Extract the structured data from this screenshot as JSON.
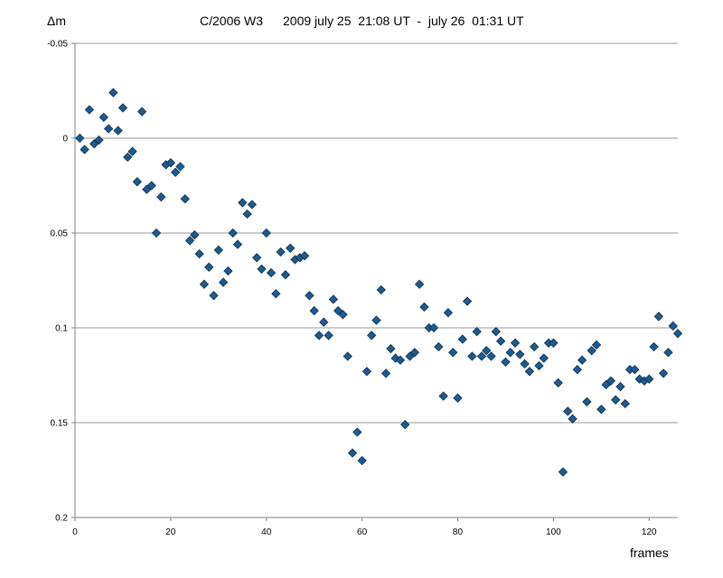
{
  "chart_data": {
    "type": "scatter",
    "title": {
      "object": "C/2006 W3",
      "date": "2009 july 25  21:08 UT  -  july 26  01:31 UT"
    },
    "xlabel": "frames",
    "ylabel": "Δm",
    "xlim": [
      0,
      126
    ],
    "ylim": [
      -0.05,
      0.2
    ],
    "y_inverted": true,
    "x_ticks": [
      {
        "value": 0,
        "label": "0"
      },
      {
        "value": 20,
        "label": "20"
      },
      {
        "value": 40,
        "label": "40"
      },
      {
        "value": 60,
        "label": "60"
      },
      {
        "value": 80,
        "label": "80"
      },
      {
        "value": 100,
        "label": "100"
      },
      {
        "value": 120,
        "label": "120"
      }
    ],
    "y_ticks": [
      {
        "value": -0.05,
        "label": "-0.05"
      },
      {
        "value": 0,
        "label": "0"
      },
      {
        "value": 0.05,
        "label": "0.05"
      },
      {
        "value": 0.1,
        "label": "0.1"
      },
      {
        "value": 0.15,
        "label": "0.15"
      },
      {
        "value": 0.2,
        "label": "0.2"
      }
    ],
    "grid": "horizontal",
    "marker": "diamond",
    "marker_color": "#1f5a8e",
    "points": [
      [
        1,
        0.0
      ],
      [
        2,
        0.006
      ],
      [
        3,
        -0.015
      ],
      [
        4,
        0.003
      ],
      [
        5,
        0.001
      ],
      [
        6,
        -0.011
      ],
      [
        7,
        -0.005
      ],
      [
        8,
        -0.024
      ],
      [
        9,
        -0.004
      ],
      [
        10,
        -0.016
      ],
      [
        11,
        0.01
      ],
      [
        12,
        0.007
      ],
      [
        13,
        0.023
      ],
      [
        14,
        -0.014
      ],
      [
        15,
        0.027
      ],
      [
        16,
        0.025
      ],
      [
        17,
        0.05
      ],
      [
        18,
        0.031
      ],
      [
        19,
        0.014
      ],
      [
        20,
        0.013
      ],
      [
        21,
        0.018
      ],
      [
        22,
        0.015
      ],
      [
        23,
        0.032
      ],
      [
        24,
        0.054
      ],
      [
        25,
        0.051
      ],
      [
        26,
        0.061
      ],
      [
        27,
        0.077
      ],
      [
        28,
        0.068
      ],
      [
        29,
        0.083
      ],
      [
        30,
        0.059
      ],
      [
        31,
        0.076
      ],
      [
        32,
        0.07
      ],
      [
        33,
        0.05
      ],
      [
        34,
        0.056
      ],
      [
        35,
        0.034
      ],
      [
        36,
        0.04
      ],
      [
        37,
        0.035
      ],
      [
        38,
        0.063
      ],
      [
        39,
        0.069
      ],
      [
        40,
        0.05
      ],
      [
        41,
        0.071
      ],
      [
        42,
        0.082
      ],
      [
        43,
        0.06
      ],
      [
        44,
        0.072
      ],
      [
        45,
        0.058
      ],
      [
        46,
        0.064
      ],
      [
        47,
        0.063
      ],
      [
        48,
        0.062
      ],
      [
        49,
        0.083
      ],
      [
        50,
        0.091
      ],
      [
        51,
        0.104
      ],
      [
        52,
        0.097
      ],
      [
        53,
        0.104
      ],
      [
        54,
        0.085
      ],
      [
        55,
        0.091
      ],
      [
        56,
        0.093
      ],
      [
        57,
        0.115
      ],
      [
        58,
        0.166
      ],
      [
        59,
        0.155
      ],
      [
        60,
        0.17
      ],
      [
        61,
        0.123
      ],
      [
        62,
        0.104
      ],
      [
        63,
        0.096
      ],
      [
        64,
        0.08
      ],
      [
        65,
        0.124
      ],
      [
        66,
        0.111
      ],
      [
        67,
        0.116
      ],
      [
        68,
        0.117
      ],
      [
        69,
        0.151
      ],
      [
        70,
        0.115
      ],
      [
        71,
        0.113
      ],
      [
        72,
        0.077
      ],
      [
        73,
        0.089
      ],
      [
        74,
        0.1
      ],
      [
        75,
        0.1
      ],
      [
        76,
        0.11
      ],
      [
        77,
        0.136
      ],
      [
        78,
        0.092
      ],
      [
        79,
        0.113
      ],
      [
        80,
        0.137
      ],
      [
        81,
        0.106
      ],
      [
        82,
        0.086
      ],
      [
        83,
        0.115
      ],
      [
        84,
        0.102
      ],
      [
        85,
        0.115
      ],
      [
        86,
        0.112
      ],
      [
        87,
        0.115
      ],
      [
        88,
        0.102
      ],
      [
        89,
        0.107
      ],
      [
        90,
        0.118
      ],
      [
        91,
        0.113
      ],
      [
        92,
        0.108
      ],
      [
        93,
        0.114
      ],
      [
        94,
        0.119
      ],
      [
        95,
        0.123
      ],
      [
        96,
        0.11
      ],
      [
        97,
        0.12
      ],
      [
        98,
        0.116
      ],
      [
        99,
        0.108
      ],
      [
        100,
        0.108
      ],
      [
        101,
        0.129
      ],
      [
        102,
        0.176
      ],
      [
        103,
        0.144
      ],
      [
        104,
        0.148
      ],
      [
        105,
        0.122
      ],
      [
        106,
        0.117
      ],
      [
        107,
        0.139
      ],
      [
        108,
        0.112
      ],
      [
        109,
        0.109
      ],
      [
        110,
        0.143
      ],
      [
        111,
        0.13
      ],
      [
        112,
        0.128
      ],
      [
        113,
        0.138
      ],
      [
        114,
        0.131
      ],
      [
        115,
        0.14
      ],
      [
        116,
        0.122
      ],
      [
        117,
        0.122
      ],
      [
        118,
        0.127
      ],
      [
        119,
        0.128
      ],
      [
        120,
        0.127
      ],
      [
        121,
        0.11
      ],
      [
        122,
        0.094
      ],
      [
        123,
        0.124
      ],
      [
        124,
        0.113
      ],
      [
        125,
        0.099
      ],
      [
        126,
        0.103
      ]
    ]
  }
}
